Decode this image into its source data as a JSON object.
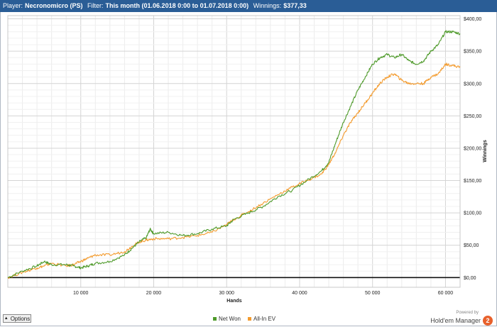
{
  "header": {
    "player_label": "Player:",
    "player_value": "Necronomicro (PS)",
    "filter_label": "Filter:",
    "filter_value": "This month (01.06.2018 0:00 to 01.07.2018 0:00)",
    "winnings_label": "Winnings:",
    "winnings_value": "$377,33"
  },
  "chart_data": {
    "type": "line",
    "xlabel": "Hands",
    "ylabel": "Winnings",
    "xlim": [
      0,
      62000
    ],
    "ylim": [
      -15,
      405
    ],
    "x_ticks": [
      10000,
      20000,
      30000,
      40000,
      50000,
      60000
    ],
    "x_tick_labels": [
      "10 000",
      "20 000",
      "30 000",
      "40 000",
      "50 000",
      "60 000"
    ],
    "y_ticks": [
      0,
      50,
      100,
      150,
      200,
      250,
      300,
      350,
      400
    ],
    "y_tick_labels": [
      "$0,00",
      "$50,00",
      "$100,00",
      "$150,00",
      "$200,00",
      "$250,00",
      "$300,00",
      "$350,00",
      "$400,00"
    ],
    "grid": true,
    "legend_position": "bottom-center",
    "series": [
      {
        "name": "Net Won",
        "color": "#4e9a2a",
        "x": [
          0,
          2000,
          4000,
          5000,
          6000,
          8000,
          9000,
          10000,
          11000,
          12000,
          14000,
          16000,
          17000,
          18000,
          19000,
          19500,
          20000,
          22000,
          24000,
          26000,
          28000,
          30000,
          31000,
          33000,
          35000,
          37000,
          39000,
          41000,
          43000,
          44000,
          45000,
          46000,
          47000,
          48000,
          49000,
          50000,
          51000,
          52000,
          53000,
          54000,
          55000,
          56000,
          57000,
          58000,
          59000,
          60000,
          61000,
          62000
        ],
        "values": [
          0,
          10,
          18,
          25,
          20,
          20,
          18,
          15,
          18,
          22,
          25,
          35,
          45,
          55,
          62,
          75,
          68,
          70,
          65,
          68,
          75,
          80,
          90,
          100,
          110,
          125,
          135,
          150,
          165,
          178,
          210,
          240,
          265,
          290,
          310,
          330,
          340,
          345,
          340,
          345,
          335,
          330,
          335,
          350,
          360,
          380,
          380,
          377
        ]
      },
      {
        "name": "All-In EV",
        "color": "#f39b2e",
        "x": [
          0,
          2000,
          4000,
          5000,
          6000,
          8000,
          9000,
          10000,
          11000,
          12000,
          14000,
          16000,
          17000,
          18000,
          19000,
          20000,
          22000,
          24000,
          26000,
          28000,
          30000,
          31000,
          33000,
          35000,
          37000,
          39000,
          41000,
          43000,
          44000,
          45000,
          46000,
          47000,
          48000,
          49000,
          50000,
          51000,
          52000,
          53000,
          54000,
          55000,
          56000,
          57000,
          58000,
          59000,
          60000,
          61000,
          62000
        ],
        "values": [
          0,
          8,
          15,
          18,
          22,
          18,
          20,
          25,
          30,
          35,
          35,
          40,
          48,
          55,
          58,
          60,
          60,
          62,
          65,
          70,
          82,
          90,
          102,
          115,
          128,
          140,
          150,
          160,
          175,
          195,
          220,
          240,
          255,
          270,
          285,
          300,
          310,
          315,
          305,
          300,
          300,
          300,
          310,
          315,
          330,
          328,
          325
        ]
      }
    ]
  },
  "controls": {
    "options_label": "Options"
  },
  "branding": {
    "powered_by": "Powered by",
    "app_name": "Hold'em Manager",
    "logo_text": "2"
  }
}
